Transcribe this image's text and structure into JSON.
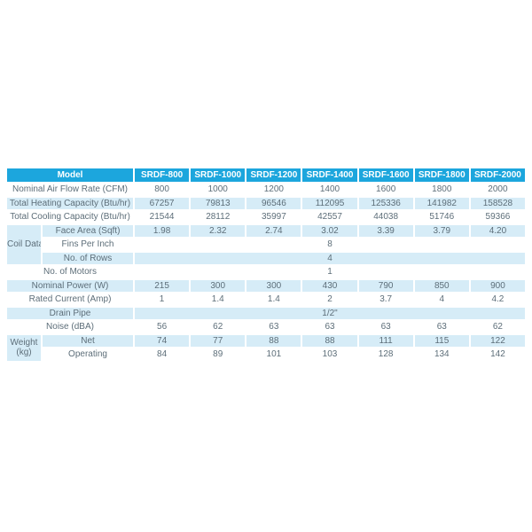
{
  "colors": {
    "header_bg": "#1ca6dd",
    "header_text": "#ffffff",
    "stripe_bg": "#d6ecf7",
    "body_text": "#5d6e79",
    "page_bg": "#ffffff"
  },
  "chart_data": {
    "type": "table",
    "title": "",
    "header": {
      "model_label": "Model",
      "model_columns": [
        "SRDF-800",
        "SRDF-1000",
        "SRDF-1200",
        "SRDF-1400",
        "SRDF-1600",
        "SRDF-1800",
        "SRDF-2000"
      ]
    },
    "groups": {
      "coil_data_label": "Coil Data",
      "weight_label_line1": "Weight",
      "weight_label_line2": "(kg)"
    },
    "rows": {
      "air_flow": {
        "label": "Nominal Air Flow Rate (CFM)",
        "values": [
          "800",
          "1000",
          "1200",
          "1400",
          "1600",
          "1800",
          "2000"
        ]
      },
      "heating": {
        "label": "Total Heating Capacity (Btu/hr)",
        "values": [
          "67257",
          "79813",
          "96546",
          "112095",
          "125336",
          "141982",
          "158528"
        ]
      },
      "cooling": {
        "label": "Total Cooling Capacity (Btu/hr)",
        "values": [
          "21544",
          "28112",
          "35997",
          "42557",
          "44038",
          "51746",
          "59366"
        ]
      },
      "face_area": {
        "label": "Face Area (Sqft)",
        "values": [
          "1.98",
          "2.32",
          "2.74",
          "3.02",
          "3.39",
          "3.79",
          "4.20"
        ]
      },
      "fins_per_inch": {
        "label": "Fins Per Inch",
        "merged_value": "8"
      },
      "no_of_rows": {
        "label": "No. of Rows",
        "merged_value": "4"
      },
      "no_of_motors": {
        "label": "No. of  Motors",
        "merged_value": "1"
      },
      "nominal_power": {
        "label": "Nominal Power (W)",
        "values": [
          "215",
          "300",
          "300",
          "430",
          "790",
          "850",
          "900"
        ]
      },
      "rated_current": {
        "label": "Rated Current (Amp)",
        "values": [
          "1",
          "1.4",
          "1.4",
          "2",
          "3.7",
          "4",
          "4.2"
        ]
      },
      "drain_pipe": {
        "label": "Drain Pipe",
        "merged_value": "1/2\""
      },
      "noise": {
        "label": "Noise (dBA)",
        "values": [
          "56",
          "62",
          "63",
          "63",
          "63",
          "63",
          "62"
        ]
      },
      "net": {
        "label": "Net",
        "values": [
          "74",
          "77",
          "88",
          "88",
          "111",
          "115",
          "122"
        ]
      },
      "operating": {
        "label": "Operating",
        "values": [
          "84",
          "89",
          "101",
          "103",
          "128",
          "134",
          "142"
        ]
      }
    }
  }
}
